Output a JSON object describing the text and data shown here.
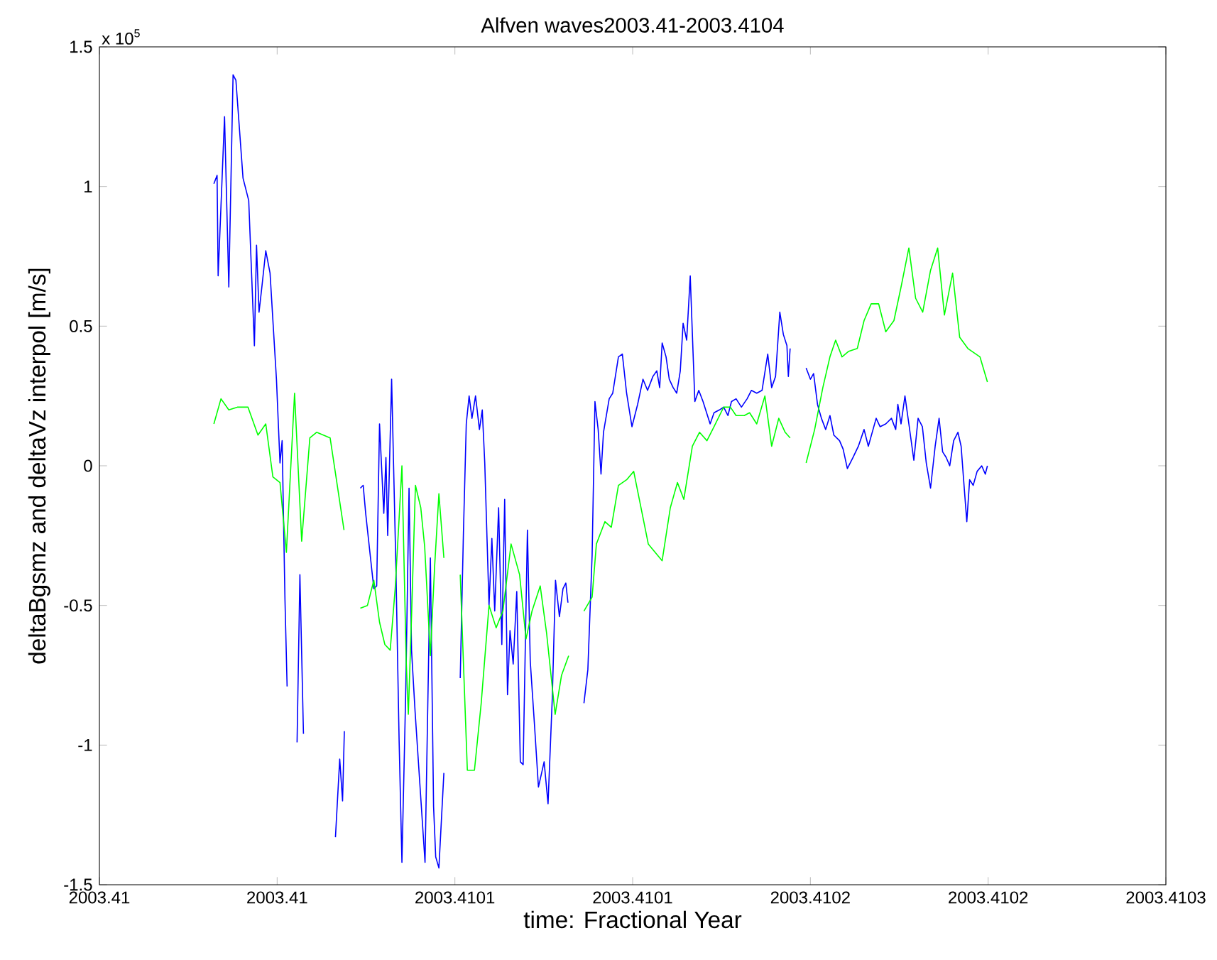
{
  "chart_data": {
    "type": "line",
    "title": "Alfven waves2003.41-2003.4104",
    "xlabel": "time: Fractional Year",
    "ylabel": "deltaBgsmz and deltaVz interpol [m/s]",
    "annotations": [
      "x 10$^{5}$"
    ],
    "xlim": [
      2003.41,
      2003.4103
    ],
    "xticks": [
      {
        "value": 2003.41,
        "label": "2003.41"
      },
      {
        "value": 2003.41005,
        "label": "2003.41"
      },
      {
        "value": 2003.4101,
        "label": "2003.4101"
      },
      {
        "value": 2003.41015,
        "label": "2003.4101"
      },
      {
        "value": 2003.4102,
        "label": "2003.4102"
      },
      {
        "value": 2003.41025,
        "label": "2003.4102"
      },
      {
        "value": 2003.4103,
        "label": "2003.4103"
      }
    ],
    "ylim": [
      -1.5,
      1.5
    ],
    "yticks": [
      -1.5,
      -1,
      -0.5,
      0,
      0.5,
      1,
      1.5
    ],
    "series": [
      {
        "color": "#0000ff",
        "x": [
          2003.4100322,
          2003.4100331,
          2003.4100334,
          2003.4100342,
          2003.4100352,
          2003.4100364,
          2003.4100376,
          2003.4100384,
          2003.4100404,
          2003.410042,
          2003.4100436,
          2003.4100442,
          2003.4100449,
          2003.4100457,
          2003.4100468,
          2003.410048,
          2003.4100498,
          2003.4100508,
          2003.4100514,
          2003.4100522,
          2003.4100528,
          2003.410054,
          2003.4100556,
          2003.4100564,
          2003.4100574,
          2003.410062,
          2003.4100664,
          2003.4100676,
          2003.4100684,
          2003.4100689,
          2003.4100712,
          2003.4100734,
          2003.4100742,
          2003.4100749,
          2003.4100772,
          2003.410078,
          2003.4100788,
          2003.41008,
          2003.4100806,
          2003.4100811,
          2003.4100822,
          2003.4100834,
          2003.4100843,
          2003.4100851,
          2003.4100862,
          2003.4100871,
          2003.4100878,
          2003.4100888,
          2003.4100916,
          2003.4100931,
          2003.410094,
          2003.4100946,
          2003.4100955,
          2003.4100969,
          2003.4100992,
          2003.4101015,
          2003.4101024,
          2003.4101032,
          2003.410104,
          2003.4101048,
          2003.4101058,
          2003.4101069,
          2003.4101077,
          2003.4101084,
          2003.4101096,
          2003.4101104,
          2003.4101112,
          2003.4101123,
          2003.4101132,
          2003.410114,
          2003.4101148,
          2003.4101155,
          2003.4101164,
          2003.4101174,
          2003.4101184,
          2003.4101192,
          2003.4101204,
          2003.4101212,
          2003.4101224,
          2003.4101235,
          2003.4101251,
          2003.4101262,
          2003.4101274,
          2003.4101283,
          2003.4101294,
          2003.4101304,
          2003.4101312,
          2003.4101318,
          2003.410134,
          2003.4101363,
          2003.4101374,
          2003.4101386,
          2003.4101394,
          2003.4101403,
          2003.4101411,
          2003.4101418,
          2003.4101434,
          2003.4101444,
          2003.410146,
          2003.4101471,
          2003.4101483,
          2003.4101498,
          2003.4101514,
          2003.4101529,
          2003.4101542,
          2003.4101557,
          2003.4101568,
          2003.4101576,
          2003.4101583,
          2003.4101594,
          2003.4101603,
          2003.4101614,
          2003.4101624,
          2003.4101634,
          2003.4101642,
          2003.4101652,
          2003.4101662,
          2003.4101675,
          2003.4101686,
          2003.4101698,
          2003.4101718,
          2003.4101729,
          2003.4101744,
          2003.4101756,
          2003.4101768,
          2003.4101778,
          2003.4101791,
          2003.4101806,
          2003.4101822,
          2003.4101834,
          2003.4101849,
          2003.4101864,
          2003.410188,
          2003.4101891,
          2003.4101902,
          2003.4101914,
          2003.4101924,
          2003.4101934,
          2003.4101938,
          2003.4101943,
          2003.4101964,
          2003.4101988,
          2003.4102,
          2003.4102009,
          2003.410202,
          2003.4102031,
          2003.4102043,
          2003.4102055,
          2003.4102066,
          2003.4102082,
          2003.4102092,
          2003.4102104,
          2003.410212,
          2003.4102135,
          2003.4102151,
          2003.4102163,
          2003.4102174,
          2003.4102185,
          2003.4102196,
          2003.4102212,
          2003.4102228,
          2003.410224,
          2003.4102246,
          2003.4102255,
          2003.4102266,
          2003.4102277,
          2003.4102291,
          2003.4102303,
          2003.4102315,
          2003.4102326,
          2003.4102338,
          2003.4102351,
          2003.4102362,
          2003.4102372,
          2003.4102382,
          2003.4102392,
          2003.4102403,
          2003.4102415,
          2003.4102424,
          2003.4102431,
          2003.410244,
          2003.4102448,
          2003.4102458,
          2003.4102469,
          2003.4102482,
          2003.4102492,
          2003.4102498
        ],
        "values": [
          1.01,
          1.04,
          0.68,
          0.93,
          1.25,
          0.64,
          1.4,
          1.38,
          1.03,
          0.95,
          0.43,
          0.79,
          0.55,
          0.64,
          0.77,
          0.69,
          0.31,
          0.01,
          0.09,
          -0.48,
          -0.79,
          null,
          -0.99,
          -0.39,
          -0.96,
          null,
          -1.33,
          -1.05,
          -1.2,
          -0.95,
          null,
          -0.08,
          -0.07,
          -0.17,
          -0.44,
          -0.43,
          0.15,
          -0.17,
          0.03,
          -0.25,
          0.31,
          -0.36,
          -0.98,
          -1.42,
          -0.79,
          -0.08,
          -0.66,
          -0.88,
          -1.42,
          -0.33,
          -1.22,
          -1.4,
          -1.44,
          -1.1,
          null,
          -0.76,
          -0.24,
          0.15,
          0.25,
          0.17,
          0.25,
          0.13,
          0.2,
          0.01,
          -0.5,
          -0.26,
          -0.52,
          -0.15,
          -0.64,
          -0.12,
          -0.82,
          -0.59,
          -0.71,
          -0.45,
          -1.06,
          -1.07,
          -0.23,
          -0.7,
          -0.93,
          -1.15,
          -1.06,
          -1.21,
          -0.83,
          -0.41,
          -0.54,
          -0.44,
          -0.42,
          -0.49,
          null,
          -0.85,
          -0.73,
          -0.32,
          0.23,
          0.13,
          -0.03,
          0.12,
          0.24,
          0.26,
          0.39,
          0.4,
          0.26,
          0.14,
          0.22,
          0.31,
          0.27,
          0.32,
          0.34,
          0.28,
          0.44,
          0.39,
          0.31,
          0.28,
          0.26,
          0.34,
          0.51,
          0.45,
          0.68,
          0.23,
          0.27,
          0.23,
          0.15,
          0.19,
          0.2,
          0.21,
          0.18,
          0.23,
          0.24,
          0.21,
          0.24,
          0.27,
          0.26,
          0.27,
          0.4,
          0.28,
          0.32,
          0.55,
          0.47,
          0.43,
          0.32,
          0.42,
          null,
          0.35,
          0.31,
          0.33,
          0.22,
          0.17,
          0.13,
          0.18,
          0.11,
          0.09,
          0.06,
          -0.01,
          0.03,
          0.07,
          0.13,
          0.07,
          0.12,
          0.17,
          0.14,
          0.15,
          0.17,
          0.13,
          0.22,
          0.15,
          0.25,
          0.15,
          0.02,
          0.17,
          0.14,
          0.01,
          -0.08,
          0.07,
          0.17,
          0.05,
          0.03,
          0,
          0.09,
          0.12,
          0.07,
          -0.05,
          -0.2,
          -0.05,
          -0.07,
          -0.02,
          0,
          -0.03,
          0
        ]
      },
      {
        "color": "#00ff00",
        "x": [
          2003.4100322,
          2003.4100342,
          2003.4100364,
          2003.4100388,
          2003.4100418,
          2003.4100446,
          2003.4100468,
          2003.4100488,
          2003.4100508,
          2003.4100526,
          2003.4100549,
          2003.4100569,
          2003.4100592,
          2003.4100611,
          2003.4100649,
          2003.4100688,
          2003.4100712,
          2003.4100734,
          2003.4100754,
          2003.4100772,
          2003.4100788,
          2003.4100803,
          2003.4100818,
          2003.4100832,
          2003.4100843,
          2003.4100851,
          2003.4100863,
          2003.4100869,
          2003.4100878,
          2003.4100889,
          2003.4100904,
          2003.4100915,
          2003.4100931,
          2003.4100943,
          2003.4100955,
          2003.4100969,
          2003.4100992,
          2003.4101015,
          2003.4101035,
          2003.4101055,
          2003.4101074,
          2003.4101096,
          2003.4101116,
          2003.4101135,
          2003.4101158,
          2003.4101182,
          2003.41012,
          2003.4101217,
          2003.410124,
          2003.4101258,
          2003.4101282,
          2003.41013,
          2003.410132,
          2003.410134,
          2003.4101363,
          2003.4101386,
          2003.4101398,
          2003.4101422,
          2003.410144,
          2003.410146,
          2003.4101483,
          2003.4101503,
          2003.4101544,
          2003.4101583,
          2003.4101606,
          2003.4101626,
          2003.4101644,
          2003.4101668,
          2003.4101688,
          2003.4101709,
          2003.4101729,
          2003.4101756,
          2003.4101775,
          2003.4101791,
          2003.4101814,
          2003.4101829,
          2003.4101849,
          2003.4101872,
          2003.4101891,
          2003.4101911,
          2003.4101929,
          2003.4101943,
          2003.4101964,
          2003.4101988,
          2003.4102012,
          2003.4102035,
          2003.4102055,
          2003.4102071,
          2003.4102089,
          2003.4102108,
          2003.4102132,
          2003.4102151,
          2003.4102171,
          2003.4102192,
          2003.4102212,
          2003.4102235,
          2003.4102255,
          2003.4102277,
          2003.4102296,
          2003.4102316,
          2003.4102338,
          2003.4102358,
          2003.4102377,
          2003.41024,
          2003.410242,
          2003.4102443,
          2003.4102477,
          2003.4102498
        ],
        "values": [
          0.15,
          0.24,
          0.2,
          0.21,
          0.21,
          0.11,
          0.15,
          -0.04,
          -0.06,
          -0.31,
          0.26,
          -0.27,
          0.1,
          0.12,
          0.1,
          -0.23,
          null,
          -0.51,
          -0.5,
          -0.41,
          -0.56,
          -0.64,
          -0.66,
          -0.44,
          -0.19,
          0,
          -0.7,
          -0.89,
          -0.54,
          -0.07,
          -0.15,
          -0.29,
          -0.68,
          -0.36,
          -0.1,
          -0.33,
          null,
          -0.39,
          -1.09,
          -1.09,
          -0.85,
          -0.5,
          -0.58,
          -0.52,
          -0.28,
          -0.39,
          -0.62,
          -0.52,
          -0.43,
          -0.6,
          -0.89,
          -0.75,
          -0.68,
          null,
          -0.52,
          -0.47,
          -0.28,
          -0.2,
          -0.22,
          -0.07,
          -0.05,
          -0.02,
          -0.28,
          -0.34,
          -0.15,
          -0.06,
          -0.12,
          0.07,
          0.12,
          0.09,
          0.14,
          0.21,
          0.21,
          0.18,
          0.18,
          0.19,
          0.15,
          0.25,
          0.07,
          0.17,
          0.12,
          0.1,
          null,
          0.01,
          0.13,
          0.28,
          0.39,
          0.45,
          0.39,
          0.41,
          0.42,
          0.52,
          0.58,
          0.58,
          0.48,
          0.52,
          0.64,
          0.78,
          0.6,
          0.55,
          0.7,
          0.78,
          0.54,
          0.69,
          0.46,
          0.42,
          0.39,
          0.3
        ]
      }
    ]
  }
}
